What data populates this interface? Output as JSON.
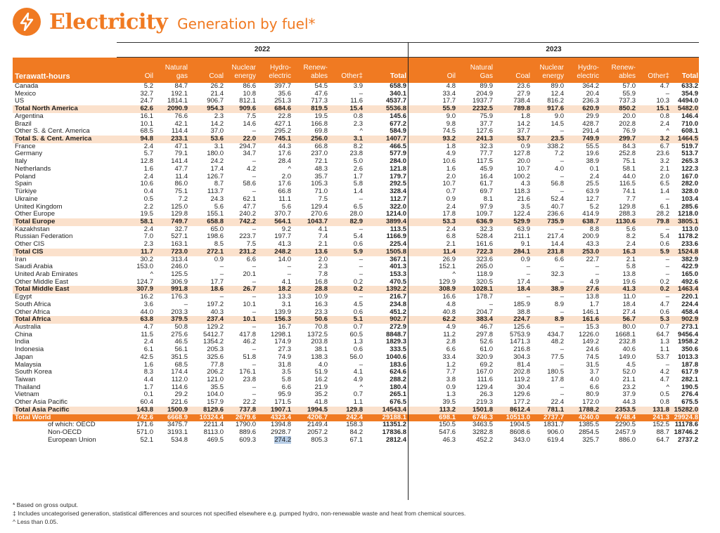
{
  "header": {
    "title": "Electricity",
    "subtitle": "Generation by fuel*"
  },
  "years": [
    "2022",
    "2023"
  ],
  "unit_label": "Terawatt-hours",
  "columns": [
    "Oil",
    "Natural gas",
    "Coal",
    "Nuclear energy",
    "Hydro-electric",
    "Renew-ables",
    "Other‡",
    "Total"
  ],
  "columns_2023": [
    "Oil",
    "Natural Gas",
    "Coal",
    "Nuclear energy",
    "Hydro-electric",
    "Renew-ables",
    "Other‡",
    "Total"
  ],
  "highlight": {
    "row": 47,
    "col": 4
  },
  "rows": [
    {
      "name": "Canada",
      "t": "",
      "v": [
        "5.2",
        "84.7",
        "26.2",
        "86.6",
        "397.7",
        "54.5",
        "3.9",
        "658.9",
        "4.8",
        "89.9",
        "23.6",
        "89.0",
        "364.2",
        "57.0",
        "4.7",
        "633.2"
      ]
    },
    {
      "name": "Mexico",
      "t": "",
      "v": [
        "32.7",
        "192.1",
        "21.4",
        "10.8",
        "35.6",
        "47.6",
        "–",
        "340.1",
        "33.4",
        "204.9",
        "27.9",
        "12.4",
        "20.4",
        "55.9",
        "–",
        "354.9"
      ]
    },
    {
      "name": "US",
      "t": "",
      "v": [
        "24.7",
        "1814.1",
        "906.7",
        "812.1",
        "251.3",
        "717.3",
        "11.6",
        "4537.7",
        "17.7",
        "1937.7",
        "738.4",
        "816.2",
        "236.3",
        "737.3",
        "10.3",
        "4494.0"
      ]
    },
    {
      "name": "Total North America",
      "t": "reg",
      "v": [
        "62.6",
        "2090.9",
        "954.3",
        "909.6",
        "684.6",
        "819.5",
        "15.4",
        "5536.8",
        "55.9",
        "2232.5",
        "789.8",
        "917.6",
        "620.9",
        "850.2",
        "15.1",
        "5482.0"
      ]
    },
    {
      "name": "Argentina",
      "t": "",
      "v": [
        "16.1",
        "76.6",
        "2.3",
        "7.5",
        "22.8",
        "19.5",
        "0.8",
        "145.6",
        "9.0",
        "75.9",
        "1.8",
        "9.0",
        "29.9",
        "20.0",
        "0.8",
        "146.4"
      ]
    },
    {
      "name": "Brazil",
      "t": "",
      "v": [
        "10.1",
        "42.1",
        "14.2",
        "14.6",
        "427.1",
        "166.8",
        "2.3",
        "677.2",
        "9.8",
        "37.7",
        "14.2",
        "14.5",
        "428.7",
        "202.8",
        "2.4",
        "710.0"
      ]
    },
    {
      "name": "Other S. & Cent. America",
      "t": "",
      "v": [
        "68.5",
        "114.4",
        "37.0",
        "–",
        "295.2",
        "69.8",
        "^",
        "584.9",
        "74.5",
        "127.6",
        "37.7",
        "–",
        "291.4",
        "76.9",
        "^",
        "608.1"
      ]
    },
    {
      "name": "Total S. & Cent. America",
      "t": "reg",
      "v": [
        "94.8",
        "233.1",
        "53.6",
        "22.0",
        "745.1",
        "256.0",
        "3.1",
        "1407.7",
        "93.2",
        "241.3",
        "53.7",
        "23.5",
        "749.9",
        "299.7",
        "3.2",
        "1464.5"
      ]
    },
    {
      "name": "France",
      "t": "",
      "v": [
        "2.4",
        "47.1",
        "3.1",
        "294.7",
        "44.3",
        "66.8",
        "8.2",
        "466.5",
        "1.8",
        "32.3",
        "0.9",
        "338.2",
        "55.5",
        "84.3",
        "6.7",
        "519.7"
      ]
    },
    {
      "name": "Germany",
      "t": "",
      "v": [
        "5.7",
        "79.1",
        "180.0",
        "34.7",
        "17.6",
        "237.0",
        "23.8",
        "577.9",
        "4.9",
        "77.7",
        "127.8",
        "7.2",
        "19.6",
        "252.8",
        "23.6",
        "513.7"
      ]
    },
    {
      "name": "Italy",
      "t": "",
      "v": [
        "12.8",
        "141.4",
        "24.2",
        "–",
        "28.4",
        "72.1",
        "5.0",
        "284.0",
        "10.6",
        "117.5",
        "20.0",
        "–",
        "38.9",
        "75.1",
        "3.2",
        "265.3"
      ]
    },
    {
      "name": "Netherlands",
      "t": "",
      "v": [
        "1.6",
        "47.7",
        "17.4",
        "4.2",
        "^",
        "48.3",
        "2.6",
        "121.8",
        "1.6",
        "45.9",
        "10.7",
        "4.0",
        "0.1",
        "58.1",
        "2.1",
        "122.3"
      ]
    },
    {
      "name": "Poland",
      "t": "",
      "v": [
        "2.4",
        "11.4",
        "126.7",
        "–",
        "2.0",
        "35.7",
        "1.7",
        "179.7",
        "2.0",
        "16.4",
        "100.2",
        "–",
        "2.4",
        "44.0",
        "2.0",
        "167.0"
      ]
    },
    {
      "name": "Spain",
      "t": "",
      "v": [
        "10.6",
        "86.0",
        "8.7",
        "58.6",
        "17.6",
        "105.3",
        "5.8",
        "292.5",
        "10.7",
        "61.7",
        "4.3",
        "56.8",
        "25.5",
        "116.5",
        "6.5",
        "282.0"
      ]
    },
    {
      "name": "Türkiye",
      "t": "",
      "v": [
        "0.4",
        "75.1",
        "113.7",
        "–",
        "66.8",
        "71.0",
        "1.4",
        "328.4",
        "0.7",
        "69.7",
        "118.3",
        "–",
        "63.9",
        "74.1",
        "1.4",
        "328.0"
      ]
    },
    {
      "name": "Ukraine",
      "t": "",
      "v": [
        "0.5",
        "7.2",
        "24.3",
        "62.1",
        "11.1",
        "7.5",
        "–",
        "112.7",
        "0.9",
        "8.1",
        "21.6",
        "52.4",
        "12.7",
        "7.7",
        "–",
        "103.4"
      ]
    },
    {
      "name": "United Kingdom",
      "t": "",
      "v": [
        "2.2",
        "125.0",
        "5.6",
        "47.7",
        "5.6",
        "129.4",
        "6.5",
        "322.0",
        "2.4",
        "97.9",
        "3.5",
        "40.7",
        "5.2",
        "129.8",
        "6.1",
        "285.6"
      ]
    },
    {
      "name": "Other Europe",
      "t": "",
      "v": [
        "19.5",
        "129.8",
        "155.1",
        "240.2",
        "370.7",
        "270.6",
        "28.0",
        "1214.0",
        "17.8",
        "109.7",
        "122.4",
        "236.6",
        "414.9",
        "288.3",
        "28.2",
        "1218.0"
      ]
    },
    {
      "name": "Total Europe",
      "t": "reg",
      "v": [
        "58.1",
        "749.7",
        "658.8",
        "742.2",
        "564.1",
        "1043.7",
        "82.9",
        "3899.4",
        "53.3",
        "636.9",
        "529.9",
        "735.9",
        "638.7",
        "1130.6",
        "79.8",
        "3805.1"
      ]
    },
    {
      "name": "Kazakhstan",
      "t": "",
      "v": [
        "2.4",
        "32.7",
        "65.0",
        "–",
        "9.2",
        "4.1",
        "–",
        "113.5",
        "2.4",
        "32.3",
        "63.9",
        "–",
        "8.8",
        "5.6",
        "–",
        "113.0"
      ]
    },
    {
      "name": "Russian Federation",
      "t": "",
      "v": [
        "7.0",
        "527.1",
        "198.6",
        "223.7",
        "197.7",
        "7.4",
        "5.4",
        "1166.9",
        "6.8",
        "528.4",
        "211.1",
        "217.4",
        "200.9",
        "8.2",
        "5.4",
        "1178.2"
      ]
    },
    {
      "name": "Other CIS",
      "t": "",
      "v": [
        "2.3",
        "163.1",
        "8.5",
        "7.5",
        "41.3",
        "2.1",
        "0.6",
        "225.4",
        "2.1",
        "161.6",
        "9.1",
        "14.4",
        "43.3",
        "2.4",
        "0.6",
        "233.6"
      ]
    },
    {
      "name": "Total CIS",
      "t": "reg",
      "v": [
        "11.7",
        "723.0",
        "272.1",
        "231.2",
        "248.2",
        "13.6",
        "5.9",
        "1505.8",
        "11.4",
        "722.3",
        "284.1",
        "231.8",
        "253.0",
        "16.3",
        "5.9",
        "1524.8"
      ]
    },
    {
      "name": "Iran",
      "t": "",
      "v": [
        "30.2",
        "313.4",
        "0.9",
        "6.6",
        "14.0",
        "2.0",
        "–",
        "367.1",
        "26.9",
        "323.6",
        "0.9",
        "6.6",
        "22.7",
        "2.1",
        "–",
        "382.9"
      ]
    },
    {
      "name": "Saudi Arabia",
      "t": "",
      "v": [
        "153.0",
        "246.0",
        "–",
        "–",
        "–",
        "2.3",
        "–",
        "401.3",
        "152.1",
        "265.0",
        "–",
        "–",
        "–",
        "5.8",
        "–",
        "422.9"
      ]
    },
    {
      "name": "United Arab Emirates",
      "t": "",
      "v": [
        "^",
        "125.5",
        "–",
        "20.1",
        "–",
        "7.8",
        "–",
        "153.3",
        "^",
        "118.9",
        "–",
        "32.3",
        "–",
        "13.8",
        "–",
        "165.0"
      ]
    },
    {
      "name": "Other Middle East",
      "t": "",
      "v": [
        "124.7",
        "306.9",
        "17.7",
        "–",
        "4.1",
        "16.8",
        "0.2",
        "470.5",
        "129.9",
        "320.5",
        "17.4",
        "–",
        "4.9",
        "19.6",
        "0.2",
        "492.6"
      ]
    },
    {
      "name": "Total Middle East",
      "t": "reg",
      "v": [
        "307.9",
        "991.8",
        "18.6",
        "26.7",
        "18.2",
        "28.8",
        "0.2",
        "1392.2",
        "308.9",
        "1028.1",
        "18.4",
        "38.9",
        "27.6",
        "41.3",
        "0.2",
        "1463.4"
      ]
    },
    {
      "name": "Egypt",
      "t": "",
      "v": [
        "16.2",
        "176.3",
        "–",
        "–",
        "13.3",
        "10.9",
        "–",
        "216.7",
        "16.6",
        "178.7",
        "–",
        "–",
        "13.8",
        "11.0",
        "–",
        "220.1"
      ]
    },
    {
      "name": "South Africa",
      "t": "",
      "v": [
        "3.6",
        "–",
        "197.2",
        "10.1",
        "3.1",
        "16.3",
        "4.5",
        "234.8",
        "4.8",
        "–",
        "185.9",
        "8.9",
        "1.7",
        "18.4",
        "4.7",
        "224.4"
      ]
    },
    {
      "name": "Other Africa",
      "t": "",
      "v": [
        "44.0",
        "203.3",
        "40.3",
        "–",
        "139.9",
        "23.3",
        "0.6",
        "451.2",
        "40.8",
        "204.7",
        "38.8",
        "–",
        "146.1",
        "27.4",
        "0.6",
        "458.4"
      ]
    },
    {
      "name": "Total Africa",
      "t": "reg",
      "v": [
        "63.8",
        "379.5",
        "237.4",
        "10.1",
        "156.3",
        "50.6",
        "5.1",
        "902.7",
        "62.2",
        "383.4",
        "224.7",
        "8.9",
        "161.6",
        "56.7",
        "5.3",
        "902.9"
      ]
    },
    {
      "name": "Australia",
      "t": "",
      "v": [
        "4.7",
        "50.8",
        "129.2",
        "–",
        "16.7",
        "70.8",
        "0.7",
        "272.9",
        "4.9",
        "46.7",
        "125.6",
        "–",
        "15.3",
        "80.0",
        "0.7",
        "273.1"
      ]
    },
    {
      "name": "China",
      "t": "",
      "v": [
        "11.5",
        "275.6",
        "5412.7",
        "417.8",
        "1298.1",
        "1372.5",
        "60.5",
        "8848.7",
        "11.2",
        "297.8",
        "5753.9",
        "434.7",
        "1226.0",
        "1668.1",
        "64.7",
        "9456.4"
      ]
    },
    {
      "name": "India",
      "t": "",
      "v": [
        "2.4",
        "46.5",
        "1354.2",
        "46.2",
        "174.9",
        "203.8",
        "1.3",
        "1829.3",
        "2.8",
        "52.6",
        "1471.3",
        "48.2",
        "149.2",
        "232.8",
        "1.3",
        "1958.2"
      ]
    },
    {
      "name": "Indonesia",
      "t": "",
      "v": [
        "6.1",
        "56.1",
        "205.3",
        "–",
        "27.3",
        "38.1",
        "0.6",
        "333.5",
        "6.6",
        "61.0",
        "216.8",
        "–",
        "24.6",
        "40.6",
        "1.1",
        "350.6"
      ]
    },
    {
      "name": "Japan",
      "t": "",
      "v": [
        "42.5",
        "351.5",
        "325.6",
        "51.8",
        "74.9",
        "138.3",
        "56.0",
        "1040.6",
        "33.4",
        "320.9",
        "304.3",
        "77.5",
        "74.5",
        "149.0",
        "53.7",
        "1013.3"
      ]
    },
    {
      "name": "Malaysia",
      "t": "",
      "v": [
        "1.6",
        "68.5",
        "77.8",
        "–",
        "31.8",
        "4.0",
        "–",
        "183.6",
        "1.2",
        "69.2",
        "81.4",
        "–",
        "31.5",
        "4.5",
        "–",
        "187.8"
      ]
    },
    {
      "name": "South Korea",
      "t": "",
      "v": [
        "8.3",
        "174.4",
        "206.2",
        "176.1",
        "3.5",
        "51.9",
        "4.1",
        "624.6",
        "7.7",
        "167.0",
        "202.8",
        "180.5",
        "3.7",
        "52.0",
        "4.2",
        "617.9"
      ]
    },
    {
      "name": "Taiwan",
      "t": "",
      "v": [
        "4.4",
        "112.0",
        "121.0",
        "23.8",
        "5.8",
        "16.2",
        "4.9",
        "288.2",
        "3.8",
        "111.6",
        "119.2",
        "17.8",
        "4.0",
        "21.1",
        "4.7",
        "282.1"
      ]
    },
    {
      "name": "Thailand",
      "t": "",
      "v": [
        "1.7",
        "114.6",
        "35.5",
        "–",
        "6.6",
        "21.9",
        "^",
        "180.4",
        "0.9",
        "129.4",
        "30.4",
        "–",
        "6.6",
        "23.2",
        "^",
        "190.5"
      ]
    },
    {
      "name": "Vietnam",
      "t": "",
      "v": [
        "0.1",
        "29.2",
        "104.0",
        "–",
        "95.9",
        "35.2",
        "0.7",
        "265.1",
        "1.3",
        "26.3",
        "129.6",
        "–",
        "80.9",
        "37.9",
        "0.5",
        "276.4"
      ]
    },
    {
      "name": "Other Asia Pacific",
      "t": "",
      "v": [
        "60.4",
        "221.6",
        "157.9",
        "22.2",
        "171.5",
        "41.8",
        "1.1",
        "676.5",
        "39.5",
        "219.3",
        "177.2",
        "22.4",
        "172.0",
        "44.3",
        "0.8",
        "675.5"
      ]
    },
    {
      "name": "Total Asia Pacific",
      "t": "reg",
      "v": [
        "143.8",
        "1500.9",
        "8129.6",
        "737.8",
        "1907.1",
        "1994.5",
        "129.8",
        "14543.4",
        "113.2",
        "1501.8",
        "8612.4",
        "781.1",
        "1788.2",
        "2353.5",
        "131.8",
        "15282.0"
      ]
    },
    {
      "name": "Total World",
      "t": "world",
      "v": [
        "742.6",
        "6668.9",
        "10324.4",
        "2679.6",
        "4323.4",
        "4206.7",
        "242.4",
        "29188.1",
        "698.1",
        "6746.3",
        "10513.0",
        "2737.7",
        "4240.0",
        "4748.4",
        "241.3",
        "29924.8"
      ]
    },
    {
      "name": "of which: OECD",
      "t": "ind",
      "v": [
        "171.6",
        "3475.7",
        "2211.4",
        "1790.0",
        "1394.8",
        "2149.4",
        "158.3",
        "11351.2",
        "150.5",
        "3463.5",
        "1904.5",
        "1831.7",
        "1385.5",
        "2290.5",
        "152.5",
        "11178.6"
      ]
    },
    {
      "name": "Non-OECD",
      "t": "ind",
      "v": [
        "571.0",
        "3193.1",
        "8113.0",
        "889.6",
        "2928.7",
        "2057.2",
        "84.2",
        "17836.8",
        "547.6",
        "3282.8",
        "8608.6",
        "906.0",
        "2854.5",
        "2457.9",
        "88.7",
        "18746.2"
      ]
    },
    {
      "name": "European Union",
      "t": "ind",
      "v": [
        "52.1",
        "534.8",
        "469.5",
        "609.3",
        "274.2",
        "805.3",
        "67.1",
        "2812.4",
        "46.3",
        "452.2",
        "343.0",
        "619.4",
        "325.7",
        "886.0",
        "64.7",
        "2737.2"
      ]
    }
  ],
  "footnotes": [
    "* Based on gross output.",
    "‡ Includes uncategorised generation, statistical differences and sources not specified elsewhere e.g. pumped hydro, non-renewable waste and heat from chemical sources.",
    "^ Less than 0.05."
  ]
}
